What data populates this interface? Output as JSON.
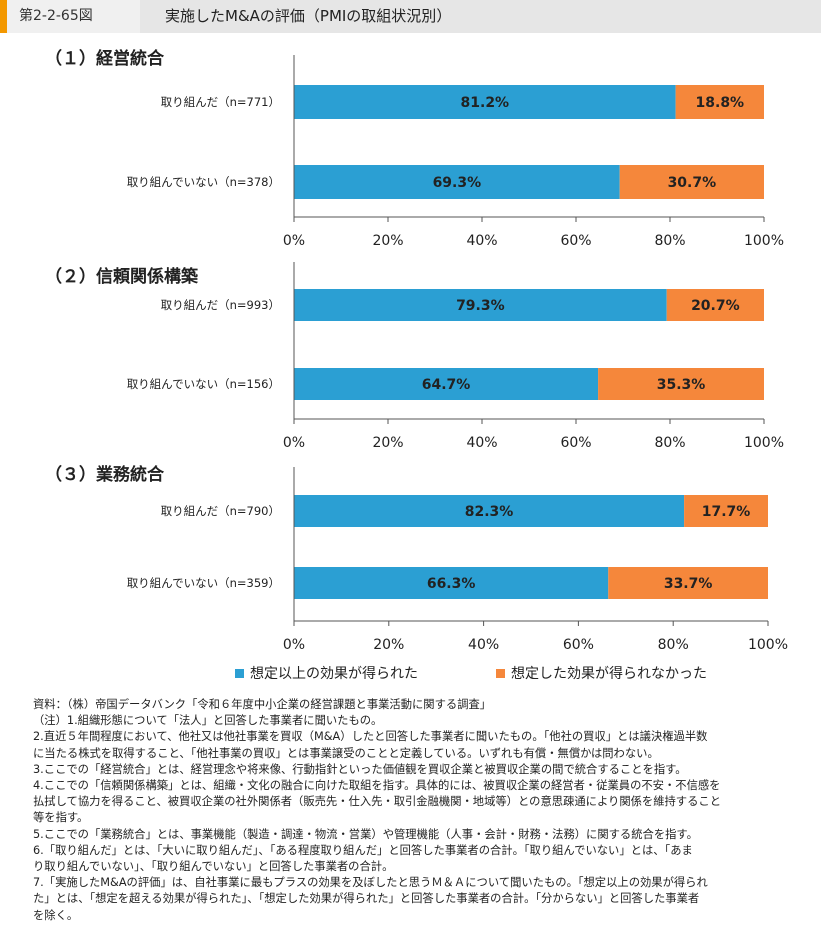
{
  "header": {
    "figure_no": "第2-2-65図",
    "title": "実施したM&Aの評価（PMIの取組状況別）"
  },
  "colors": {
    "positive": "#2b9fd3",
    "negative": "#f5873b",
    "axis": "#555555"
  },
  "legend": {
    "positive": "想定以上の効果が得られた",
    "negative": "想定した効果が得られなかった"
  },
  "chart_data": [
    {
      "type": "bar",
      "orientation": "horizontal",
      "stacked": true,
      "title": "（１）経営統合",
      "categories": [
        "取り組んだ（n=771）",
        "取り組んでいない（n=378）"
      ],
      "series": [
        {
          "name": "想定以上の効果が得られた",
          "values": [
            81.2,
            69.3
          ]
        },
        {
          "name": "想定した効果が得られなかった",
          "values": [
            18.8,
            30.7
          ]
        }
      ],
      "xlim": [
        0,
        100
      ],
      "xticks": [
        "0%",
        "20%",
        "40%",
        "60%",
        "80%",
        "100%"
      ],
      "labels": [
        [
          "81.2%",
          "18.8%"
        ],
        [
          "69.3%",
          "30.7%"
        ]
      ],
      "grid": false
    },
    {
      "type": "bar",
      "orientation": "horizontal",
      "stacked": true,
      "title": "（２）信頼関係構築",
      "categories": [
        "取り組んだ（n=993）",
        "取り組んでいない（n=156）"
      ],
      "series": [
        {
          "name": "想定以上の効果が得られた",
          "values": [
            79.3,
            64.7
          ]
        },
        {
          "name": "想定した効果が得られなかった",
          "values": [
            20.7,
            35.3
          ]
        }
      ],
      "xlim": [
        0,
        100
      ],
      "xticks": [
        "0%",
        "20%",
        "40%",
        "60%",
        "80%",
        "100%"
      ],
      "labels": [
        [
          "79.3%",
          "20.7%"
        ],
        [
          "64.7%",
          "35.3%"
        ]
      ],
      "grid": false
    },
    {
      "type": "bar",
      "orientation": "horizontal",
      "stacked": true,
      "title": "（３）業務統合",
      "categories": [
        "取り組んだ（n=790）",
        "取り組んでいない（n=359）"
      ],
      "series": [
        {
          "name": "想定以上の効果が得られた",
          "values": [
            82.3,
            66.3
          ]
        },
        {
          "name": "想定した効果が得られなかった",
          "values": [
            17.7,
            33.7
          ]
        }
      ],
      "xlim": [
        0,
        100
      ],
      "xticks": [
        "0%",
        "20%",
        "40%",
        "60%",
        "80%",
        "100%"
      ],
      "labels": [
        [
          "82.3%",
          "17.7%"
        ],
        [
          "66.3%",
          "33.7%"
        ]
      ],
      "grid": false
    }
  ],
  "notes": [
    "資料：（株）帝国データバンク「令和６年度中小企業の経営課題と事業活動に関する調査」",
    "（注）1.組織形態について「法人」と回答した事業者に聞いたもの。",
    "2.直近５年間程度において、他社又は他社事業を買収（M&A）したと回答した事業者に聞いたもの。「他社の買収」とは議決権過半数",
    "に当たる株式を取得すること、「他社事業の買収」とは事業譲受のことと定義している。いずれも有償・無償かは問わない。",
    "3.ここでの「経営統合」とは、経営理念や将来像、行動指針といった価値観を買収企業と被買収企業の間で統合することを指す。",
    "4.ここでの「信頼関係構築」とは、組織・文化の融合に向けた取組を指す。具体的には、被買収企業の経営者・従業員の不安・不信感を",
    "払拭して協力を得ること、被買収企業の社外関係者（販売先・仕入先・取引金融機関・地域等）との意思疎通により関係を維持すること",
    "等を指す。",
    "5.ここでの「業務統合」とは、事業機能（製造・調達・物流・営業）や管理機能（人事・会計・財務・法務）に関する統合を指す。",
    "6.「取り組んだ」とは、「大いに取り組んだ」、「ある程度取り組んだ」と回答した事業者の合計。「取り組んでいない」とは、「あま",
    "り取り組んでいない」、「取り組んでいない」と回答した事業者の合計。",
    "7.「実施したM&Aの評価」は、自社事業に最もプラスの効果を及ぼしたと思うＭ＆Ａについて聞いたもの。「想定以上の効果が得られ",
    "た」とは、「想定を超える効果が得られた」、「想定した効果が得られた」と回答した事業者の合計。「分からない」と回答した事業者",
    "を除く。"
  ]
}
